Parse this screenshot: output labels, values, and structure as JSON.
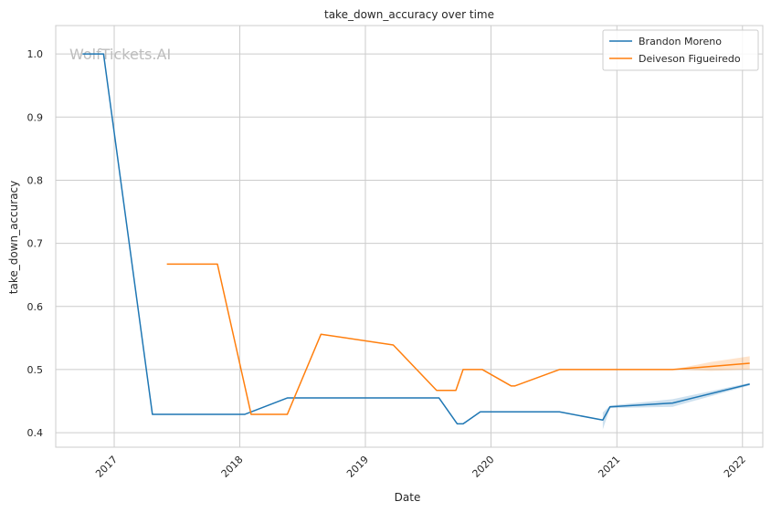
{
  "chart_data": {
    "type": "line",
    "title": "take_down_accuracy over time",
    "xlabel": "Date",
    "ylabel": "take_down_accuracy",
    "watermark": "WolfTickets.AI",
    "xlim": [
      "2016-07-15",
      "2022-03-01"
    ],
    "ylim": [
      0.377,
      1.045
    ],
    "x_ticks": [
      {
        "date": "2017-01-01",
        "label": "2017"
      },
      {
        "date": "2018-01-01",
        "label": "2018"
      },
      {
        "date": "2019-01-01",
        "label": "2019"
      },
      {
        "date": "2020-01-01",
        "label": "2020"
      },
      {
        "date": "2021-01-01",
        "label": "2021"
      },
      {
        "date": "2022-01-01",
        "label": "2022"
      }
    ],
    "y_ticks": [
      {
        "value": 0.4,
        "label": "0.4"
      },
      {
        "value": 0.5,
        "label": "0.5"
      },
      {
        "value": 0.6,
        "label": "0.6"
      },
      {
        "value": 0.7,
        "label": "0.7"
      },
      {
        "value": 0.8,
        "label": "0.8"
      },
      {
        "value": 0.9,
        "label": "0.9"
      },
      {
        "value": 1.0,
        "label": "1.0"
      }
    ],
    "grid": true,
    "legend_position": "top-right",
    "series": [
      {
        "name": "Brandon Moreno",
        "color": "#1f77b4",
        "points": [
          {
            "x": "2016-10-01",
            "y": 1.0
          },
          {
            "x": "2016-12-01",
            "y": 1.0
          },
          {
            "x": "2017-04-22",
            "y": 0.429
          },
          {
            "x": "2018-01-15",
            "y": 0.429
          },
          {
            "x": "2018-05-19",
            "y": 0.455
          },
          {
            "x": "2019-08-03",
            "y": 0.455
          },
          {
            "x": "2019-09-25",
            "y": 0.414
          },
          {
            "x": "2019-10-12",
            "y": 0.414
          },
          {
            "x": "2019-12-01",
            "y": 0.433
          },
          {
            "x": "2020-07-18",
            "y": 0.433
          },
          {
            "x": "2020-11-21",
            "y": 0.42
          },
          {
            "x": "2020-12-12",
            "y": 0.441
          },
          {
            "x": "2021-06-12",
            "y": 0.447
          },
          {
            "x": "2022-01-22",
            "y": 0.477
          }
        ],
        "band": [
          {
            "x": "2020-11-21",
            "lo": 0.405,
            "hi": 0.432
          },
          {
            "x": "2020-12-12",
            "lo": 0.439,
            "hi": 0.443
          },
          {
            "x": "2021-06-12",
            "lo": 0.441,
            "hi": 0.453
          },
          {
            "x": "2022-01-22",
            "lo": 0.475,
            "hi": 0.479
          }
        ]
      },
      {
        "name": "Deiveson Figueiredo",
        "color": "#ff7f0e",
        "points": [
          {
            "x": "2017-06-03",
            "y": 0.667
          },
          {
            "x": "2017-10-28",
            "y": 0.667
          },
          {
            "x": "2018-02-03",
            "y": 0.429
          },
          {
            "x": "2018-05-19",
            "y": 0.429
          },
          {
            "x": "2018-08-25",
            "y": 0.556
          },
          {
            "x": "2019-03-23",
            "y": 0.539
          },
          {
            "x": "2019-07-27",
            "y": 0.467
          },
          {
            "x": "2019-09-21",
            "y": 0.467
          },
          {
            "x": "2019-10-12",
            "y": 0.5
          },
          {
            "x": "2019-12-07",
            "y": 0.5
          },
          {
            "x": "2020-02-29",
            "y": 0.474
          },
          {
            "x": "2020-03-10",
            "y": 0.474
          },
          {
            "x": "2020-07-18",
            "y": 0.5
          },
          {
            "x": "2021-06-12",
            "y": 0.5
          },
          {
            "x": "2022-01-22",
            "y": 0.51
          }
        ],
        "band": [
          {
            "x": "2021-06-12",
            "lo": 0.5,
            "hi": 0.5
          },
          {
            "x": "2021-10-01",
            "lo": 0.498,
            "hi": 0.512
          },
          {
            "x": "2022-01-22",
            "lo": 0.5,
            "hi": 0.521
          }
        ]
      }
    ]
  }
}
